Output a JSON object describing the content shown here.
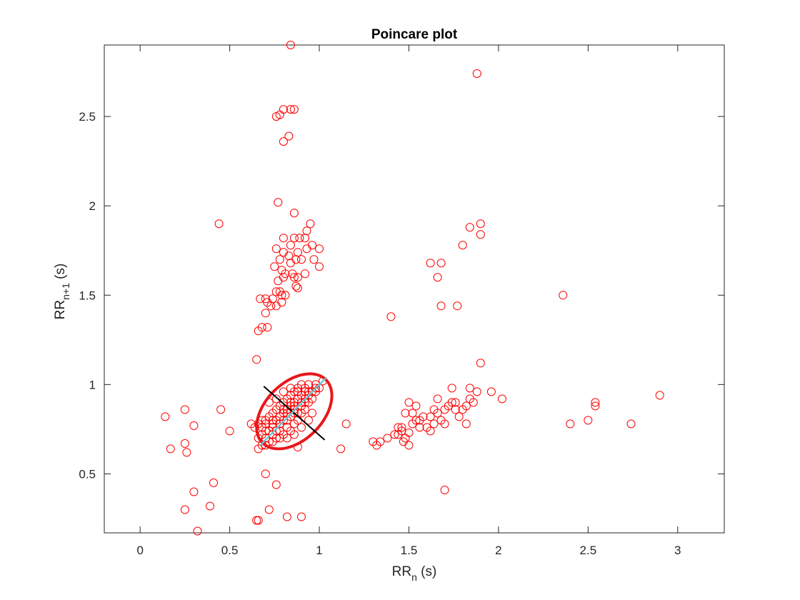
{
  "chart_data": {
    "type": "scatter",
    "title": "Poincare plot",
    "xlabel": {
      "main": "RR",
      "sub": "n",
      "unit": " (s)"
    },
    "ylabel": {
      "main": "RR",
      "sub": "n+1",
      "unit": " (s)"
    },
    "xlim": [
      -0.2,
      3.26
    ],
    "ylim": [
      0.17,
      2.9
    ],
    "xticks": [
      0,
      0.5,
      1,
      1.5,
      2,
      2.5,
      3
    ],
    "xtick_labels": [
      "0",
      "0.5",
      "1",
      "1.5",
      "2",
      "2.5",
      "3"
    ],
    "yticks": [
      0.5,
      1,
      1.5,
      2,
      2.5
    ],
    "ytick_labels": [
      "0.5",
      "1",
      "1.5",
      "2",
      "2.5"
    ],
    "grid": false,
    "colors": {
      "points": "#ff0000",
      "ellipse": "#e8171b",
      "sd2_axis": "#6ec4cf",
      "sd1_axis": "#000000",
      "text": "#262626"
    },
    "points": [
      [
        0.84,
        2.9
      ],
      [
        1.88,
        2.74
      ],
      [
        0.8,
        2.54
      ],
      [
        0.84,
        2.54
      ],
      [
        0.86,
        2.54
      ],
      [
        0.76,
        2.5
      ],
      [
        0.78,
        2.51
      ],
      [
        0.83,
        2.39
      ],
      [
        0.8,
        2.36
      ],
      [
        0.77,
        2.02
      ],
      [
        0.86,
        1.96
      ],
      [
        0.44,
        1.9
      ],
      [
        0.95,
        1.9
      ],
      [
        1.9,
        1.9
      ],
      [
        0.93,
        1.86
      ],
      [
        1.84,
        1.88
      ],
      [
        1.9,
        1.84
      ],
      [
        0.92,
        1.82
      ],
      [
        0.86,
        1.82
      ],
      [
        0.8,
        1.82
      ],
      [
        0.89,
        1.82
      ],
      [
        0.96,
        1.78
      ],
      [
        0.84,
        1.78
      ],
      [
        1.8,
        1.78
      ],
      [
        0.76,
        1.76
      ],
      [
        0.8,
        1.74
      ],
      [
        0.83,
        1.72
      ],
      [
        0.88,
        1.74
      ],
      [
        0.93,
        1.76
      ],
      [
        1.0,
        1.76
      ],
      [
        0.78,
        1.7
      ],
      [
        0.84,
        1.68
      ],
      [
        0.87,
        1.7
      ],
      [
        0.9,
        1.7
      ],
      [
        0.97,
        1.7
      ],
      [
        0.75,
        1.66
      ],
      [
        0.79,
        1.64
      ],
      [
        0.81,
        1.62
      ],
      [
        0.85,
        1.62
      ],
      [
        0.88,
        1.6
      ],
      [
        0.92,
        1.62
      ],
      [
        1.0,
        1.66
      ],
      [
        0.77,
        1.58
      ],
      [
        0.8,
        1.6
      ],
      [
        0.86,
        1.6
      ],
      [
        1.62,
        1.68
      ],
      [
        1.68,
        1.68
      ],
      [
        1.66,
        1.6
      ],
      [
        0.88,
        1.54
      ],
      [
        0.87,
        1.55
      ],
      [
        0.78,
        1.52
      ],
      [
        0.76,
        1.52
      ],
      [
        0.81,
        1.5
      ],
      [
        0.79,
        1.5
      ],
      [
        0.67,
        1.48
      ],
      [
        0.7,
        1.48
      ],
      [
        0.74,
        1.48
      ],
      [
        0.79,
        1.46
      ],
      [
        0.73,
        1.44
      ],
      [
        0.76,
        1.44
      ],
      [
        0.71,
        1.46
      ],
      [
        2.36,
        1.5
      ],
      [
        0.7,
        1.4
      ],
      [
        1.68,
        1.44
      ],
      [
        1.77,
        1.44
      ],
      [
        1.4,
        1.38
      ],
      [
        0.71,
        1.32
      ],
      [
        0.68,
        1.32
      ],
      [
        0.66,
        1.3
      ],
      [
        0.65,
        1.14
      ],
      [
        0.14,
        0.82
      ],
      [
        0.25,
        0.86
      ],
      [
        0.45,
        0.86
      ],
      [
        0.3,
        0.77
      ],
      [
        0.5,
        0.74
      ],
      [
        0.17,
        0.64
      ],
      [
        0.25,
        0.67
      ],
      [
        0.26,
        0.62
      ],
      [
        0.88,
        0.65
      ],
      [
        1.12,
        0.64
      ],
      [
        1.15,
        0.78
      ],
      [
        0.7,
        0.5
      ],
      [
        0.76,
        0.44
      ],
      [
        0.41,
        0.45
      ],
      [
        0.3,
        0.4
      ],
      [
        0.39,
        0.32
      ],
      [
        0.25,
        0.3
      ],
      [
        0.72,
        0.3
      ],
      [
        0.82,
        0.26
      ],
      [
        0.9,
        0.26
      ],
      [
        0.65,
        0.24
      ],
      [
        0.66,
        0.24
      ],
      [
        0.32,
        0.18
      ],
      [
        1.7,
        0.41
      ],
      [
        1.3,
        0.68
      ],
      [
        1.32,
        0.66
      ],
      [
        1.34,
        0.68
      ],
      [
        1.38,
        0.7
      ],
      [
        1.42,
        0.72
      ],
      [
        1.44,
        0.76
      ],
      [
        1.46,
        0.74
      ],
      [
        1.47,
        0.68
      ],
      [
        1.48,
        0.7
      ],
      [
        1.5,
        0.73
      ],
      [
        1.52,
        0.78
      ],
      [
        1.54,
        0.8
      ],
      [
        1.56,
        0.8
      ],
      [
        1.58,
        0.82
      ],
      [
        1.6,
        0.76
      ],
      [
        1.62,
        0.74
      ],
      [
        1.62,
        0.82
      ],
      [
        1.64,
        0.86
      ],
      [
        1.66,
        0.84
      ],
      [
        1.68,
        0.8
      ],
      [
        1.7,
        0.86
      ],
      [
        1.72,
        0.88
      ],
      [
        1.74,
        0.9
      ],
      [
        1.76,
        0.86
      ],
      [
        1.78,
        0.82
      ],
      [
        1.8,
        0.86
      ],
      [
        1.82,
        0.88
      ],
      [
        1.84,
        0.92
      ],
      [
        1.86,
        0.9
      ],
      [
        1.5,
        0.9
      ],
      [
        1.54,
        0.88
      ],
      [
        1.48,
        0.84
      ],
      [
        1.52,
        0.84
      ],
      [
        1.56,
        0.76
      ],
      [
        1.64,
        0.78
      ],
      [
        1.66,
        0.92
      ],
      [
        1.74,
        0.98
      ],
      [
        1.84,
        0.98
      ],
      [
        1.88,
        0.96
      ],
      [
        1.96,
        0.96
      ],
      [
        1.9,
        1.12
      ],
      [
        2.02,
        0.92
      ],
      [
        1.82,
        0.78
      ],
      [
        1.76,
        0.9
      ],
      [
        1.7,
        0.78
      ],
      [
        1.46,
        0.76
      ],
      [
        1.44,
        0.72
      ],
      [
        1.5,
        0.66
      ],
      [
        2.4,
        0.78
      ],
      [
        2.5,
        0.8
      ],
      [
        2.54,
        0.88
      ],
      [
        2.54,
        0.9
      ],
      [
        2.74,
        0.78
      ],
      [
        2.9,
        0.94
      ],
      [
        0.66,
        0.64
      ],
      [
        0.68,
        0.66
      ],
      [
        0.7,
        0.7
      ],
      [
        0.72,
        0.68
      ],
      [
        0.74,
        0.72
      ],
      [
        0.76,
        0.7
      ],
      [
        0.78,
        0.74
      ],
      [
        0.8,
        0.72
      ],
      [
        0.82,
        0.76
      ],
      [
        0.84,
        0.74
      ],
      [
        0.86,
        0.78
      ],
      [
        0.88,
        0.8
      ],
      [
        0.9,
        0.84
      ],
      [
        0.92,
        0.86
      ],
      [
        0.94,
        0.9
      ],
      [
        0.96,
        0.92
      ],
      [
        0.98,
        0.96
      ],
      [
        1.0,
        0.98
      ],
      [
        1.02,
        1.02
      ],
      [
        0.7,
        0.78
      ],
      [
        0.72,
        0.82
      ],
      [
        0.74,
        0.84
      ],
      [
        0.76,
        0.86
      ],
      [
        0.78,
        0.88
      ],
      [
        0.8,
        0.9
      ],
      [
        0.82,
        0.92
      ],
      [
        0.84,
        0.94
      ],
      [
        0.86,
        0.96
      ],
      [
        0.88,
        0.98
      ],
      [
        0.9,
        1.0
      ],
      [
        0.92,
        0.98
      ],
      [
        0.94,
        0.96
      ],
      [
        0.72,
        0.74
      ],
      [
        0.74,
        0.78
      ],
      [
        0.76,
        0.8
      ],
      [
        0.78,
        0.82
      ],
      [
        0.8,
        0.84
      ],
      [
        0.82,
        0.86
      ],
      [
        0.84,
        0.88
      ],
      [
        0.86,
        0.9
      ],
      [
        0.88,
        0.92
      ],
      [
        0.9,
        0.94
      ],
      [
        0.92,
        0.92
      ],
      [
        0.94,
        0.94
      ],
      [
        0.68,
        0.72
      ],
      [
        0.7,
        0.74
      ],
      [
        0.66,
        0.7
      ],
      [
        0.68,
        0.8
      ],
      [
        0.72,
        0.9
      ],
      [
        0.76,
        0.92
      ],
      [
        0.8,
        0.96
      ],
      [
        0.84,
        0.98
      ],
      [
        0.88,
        0.84
      ],
      [
        0.9,
        0.88
      ],
      [
        0.96,
        0.96
      ],
      [
        0.98,
        1.0
      ],
      [
        0.78,
        0.78
      ],
      [
        0.82,
        0.8
      ],
      [
        0.86,
        0.84
      ],
      [
        0.8,
        0.8
      ],
      [
        0.84,
        0.82
      ],
      [
        0.74,
        0.76
      ],
      [
        0.76,
        0.74
      ],
      [
        0.86,
        0.86
      ],
      [
        0.9,
        0.9
      ],
      [
        0.92,
        0.96
      ],
      [
        0.94,
        1.0
      ],
      [
        0.98,
        0.98
      ],
      [
        0.7,
        0.66
      ],
      [
        0.74,
        0.68
      ],
      [
        0.78,
        0.7
      ],
      [
        0.82,
        0.7
      ],
      [
        0.86,
        0.72
      ],
      [
        0.9,
        0.76
      ],
      [
        0.94,
        0.8
      ],
      [
        0.96,
        0.84
      ],
      [
        0.66,
        0.78
      ],
      [
        0.68,
        0.76
      ],
      [
        0.88,
        0.96
      ],
      [
        0.84,
        0.9
      ],
      [
        0.64,
        0.76
      ],
      [
        0.62,
        0.78
      ],
      [
        0.7,
        0.8
      ],
      [
        0.74,
        0.8
      ],
      [
        0.8,
        0.86
      ],
      [
        0.82,
        0.84
      ],
      [
        0.86,
        0.88
      ],
      [
        0.92,
        0.9
      ]
    ],
    "ellipse": {
      "center": [
        0.86,
        0.85
      ],
      "sd1": 0.16,
      "sd2": 0.25,
      "angle_deg": 45
    },
    "sd2_axis": [
      [
        0.67,
        0.66
      ],
      [
        1.04,
        1.04
      ]
    ],
    "sd1_axis": [
      [
        0.69,
        0.99
      ],
      [
        1.03,
        0.69
      ]
    ]
  }
}
